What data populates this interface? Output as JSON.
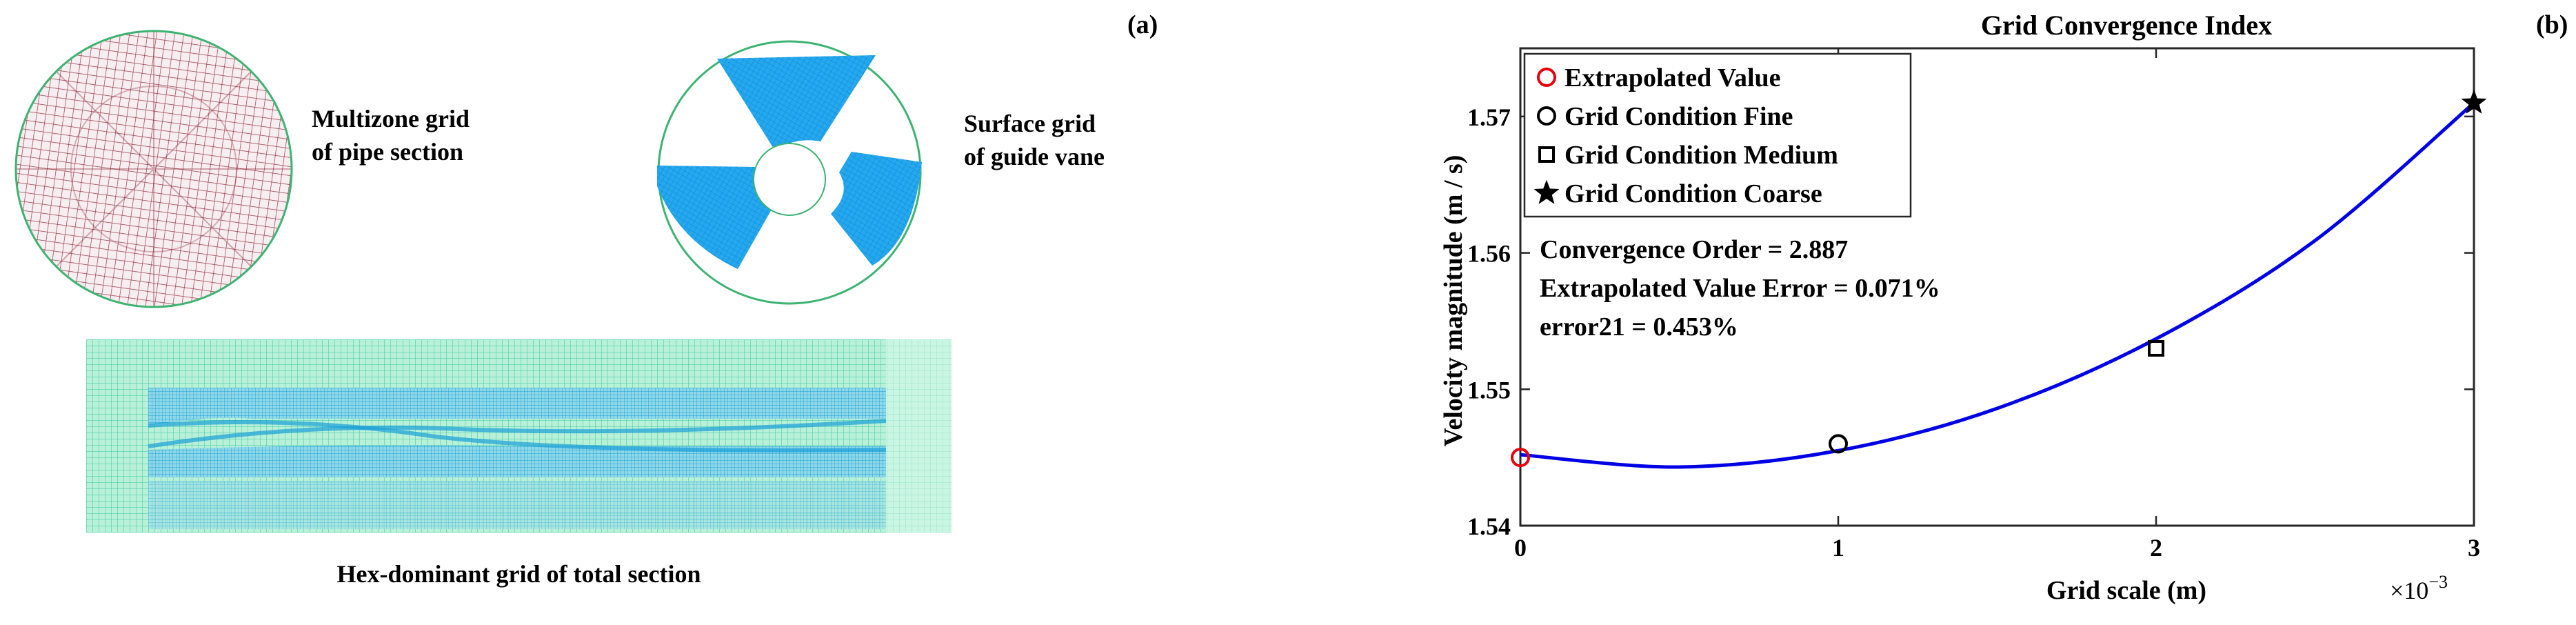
{
  "panel_a": {
    "tag": "(a)",
    "pipe_caption": [
      "Multizone grid",
      "of pipe section"
    ],
    "vane_caption": [
      "Surface grid",
      "of guide vane"
    ],
    "total_caption": "Hex-dominant grid of total section"
  },
  "panel_b": {
    "tag": "(b)",
    "annotations": [
      "Convergence Order = 2.887",
      "Extrapolated Value Error = 0.071%",
      "error21 = 0.453%"
    ],
    "x_exponent": "×10",
    "x_exponent_power": "−3"
  },
  "chart_data": {
    "type": "scatter",
    "title": "Grid Convergence Index",
    "xlabel": "Grid scale (m)",
    "ylabel": "Velocity magnitude (m / s)",
    "xlim": [
      0,
      0.003
    ],
    "ylim": [
      1.54,
      1.575
    ],
    "x_ticks": [
      0,
      0.001,
      0.002,
      0.003
    ],
    "x_tick_labels": [
      "0",
      "1",
      "2",
      "3"
    ],
    "y_ticks": [
      1.54,
      1.55,
      1.56,
      1.57
    ],
    "y_tick_labels": [
      "1.54",
      "1.55",
      "1.56",
      "1.57"
    ],
    "legend_position": "top-left",
    "series": [
      {
        "name": "Extrapolated Value",
        "marker": "circle",
        "color": "#e8000b",
        "x": [
          0
        ],
        "y": [
          1.545
        ]
      },
      {
        "name": "Grid Condition Fine",
        "marker": "circle",
        "color": "#000000",
        "x": [
          0.001
        ],
        "y": [
          1.546
        ]
      },
      {
        "name": "Grid Condition Medium",
        "marker": "square",
        "color": "#000000",
        "x": [
          0.002
        ],
        "y": [
          1.553
        ]
      },
      {
        "name": "Grid Condition Coarse",
        "marker": "star",
        "color": "#000000",
        "x": [
          0.003
        ],
        "y": [
          1.571
        ]
      }
    ],
    "fit_curve": {
      "color": "#0000e6",
      "x": [
        0,
        0.0005,
        0.001,
        0.0015,
        0.002,
        0.0025,
        0.003
      ],
      "y": [
        1.5452,
        1.5443,
        1.5455,
        1.5486,
        1.5537,
        1.5609,
        1.571
      ]
    }
  }
}
